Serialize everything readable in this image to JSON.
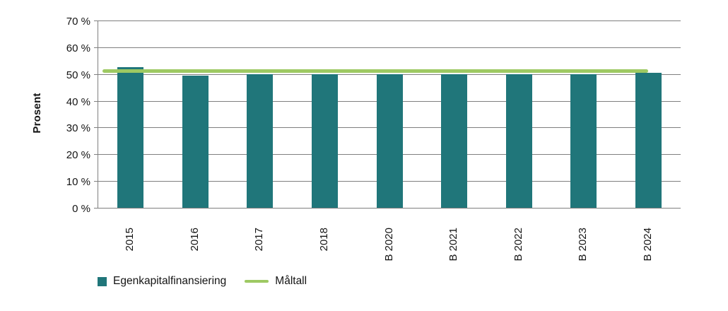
{
  "chart_data": {
    "type": "bar",
    "title": "",
    "xlabel": "",
    "ylabel": "Prosent",
    "categories": [
      "2015",
      "2016",
      "2017",
      "2018",
      "B 2020",
      "B 2021",
      "B 2022",
      "B 2023",
      "B 2024"
    ],
    "series": [
      {
        "name": "Egenkapitalfinansiering",
        "type": "bar",
        "color": "#20767A",
        "values": [
          52.5,
          49.5,
          50,
          50,
          50,
          50,
          50,
          50,
          50.5
        ]
      },
      {
        "name": "Måltall",
        "type": "line",
        "color": "#9EC963",
        "values": [
          51,
          51,
          51,
          51,
          51,
          51,
          51,
          51,
          51
        ]
      }
    ],
    "ylim": [
      0,
      70
    ],
    "ytick_step": 10,
    "ytick_labels": [
      "0 %",
      "10 %",
      "20 %",
      "30 %",
      "40 %",
      "50 %",
      "60 %",
      "70 %"
    ],
    "grid": true,
    "legend_position": "bottom-left",
    "colors": {
      "bar": "#20767A",
      "target_line": "#9EC963",
      "gridline": "#7F7F7F",
      "axis": "#7F7F7F",
      "text": "#141414",
      "background": "#FFFFFF"
    }
  }
}
